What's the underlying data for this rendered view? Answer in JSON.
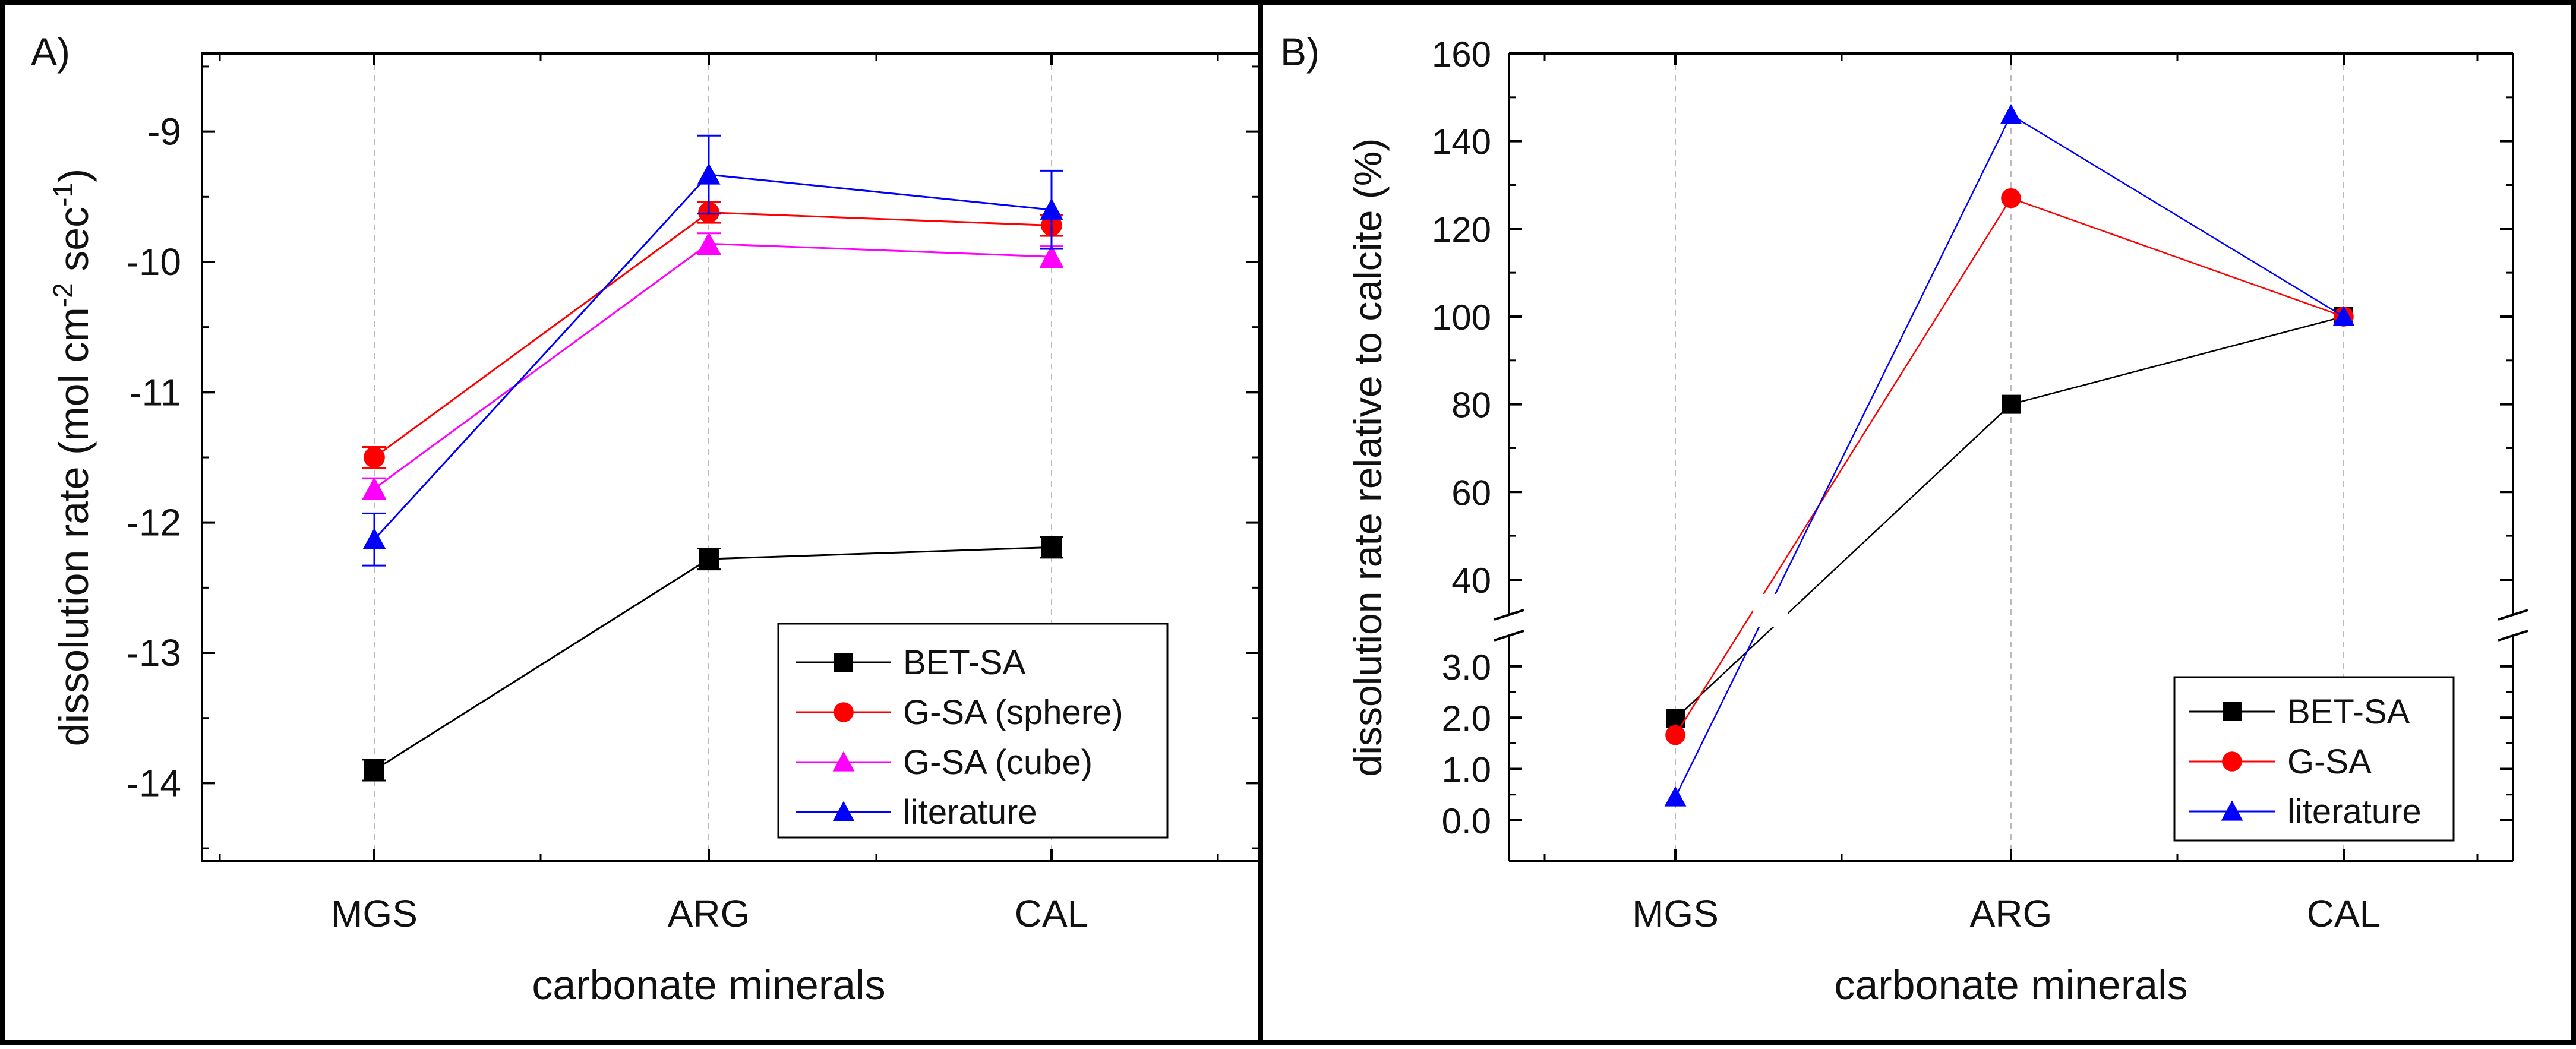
{
  "chart_data": [
    {
      "panel_label": "A)",
      "type": "line",
      "categories": [
        "MGS",
        "ARG",
        "CAL"
      ],
      "xlabel": "carbonate minerals",
      "ylabel_main": "dissolution rate (mol cm",
      "ylabel_sup1": "-2",
      "ylabel_mid": " sec",
      "ylabel_sup2": "-1",
      "ylabel_end": ")",
      "ylim": [
        -14.6,
        -8.4
      ],
      "yticks": [
        -14,
        -13,
        -12,
        -11,
        -10,
        -9
      ],
      "ytick_labels": [
        "-14",
        "-13",
        "-12",
        "-11",
        "-10",
        "-9"
      ],
      "legend_position": "bottom-right",
      "series": [
        {
          "name": "BET-SA",
          "marker": "square",
          "color": "#000000",
          "values": [
            -13.9,
            -12.28,
            -12.19
          ],
          "err": [
            0.08,
            0.08,
            0.08
          ]
        },
        {
          "name": "G-SA (sphere)",
          "marker": "circle",
          "color": "#ff0000",
          "values": [
            -11.5,
            -9.62,
            -9.72
          ],
          "err": [
            0.08,
            0.08,
            0.08
          ]
        },
        {
          "name": "G-SA (cube)",
          "marker": "triangle",
          "color": "#ff00ff",
          "values": [
            -11.74,
            -9.86,
            -9.96
          ],
          "err": [
            0.08,
            0.08,
            0.08
          ]
        },
        {
          "name": "literature",
          "marker": "triangle",
          "color": "#0000ff",
          "values": [
            -12.13,
            -9.33,
            -9.6
          ],
          "err": [
            0.2,
            0.3,
            0.3
          ]
        }
      ]
    },
    {
      "panel_label": "B)",
      "type": "line",
      "categories": [
        "MGS",
        "ARG",
        "CAL"
      ],
      "xlabel": "carbonate minerals",
      "ylabel": "dissolution rate relative to calcite (%)",
      "axis_break": true,
      "ylim_lower": [
        -0.8,
        3.6
      ],
      "ylim_upper": [
        32,
        160
      ],
      "yticks_lower": [
        0.0,
        1.0,
        2.0,
        3.0
      ],
      "ytick_labels_lower": [
        "0.0",
        "1.0",
        "2.0",
        "3.0"
      ],
      "yticks_upper": [
        40,
        60,
        80,
        100,
        120,
        140,
        160
      ],
      "ytick_labels_upper": [
        "40",
        "60",
        "80",
        "100",
        "120",
        "140",
        "160"
      ],
      "legend_position": "bottom-right",
      "series": [
        {
          "name": "BET-SA",
          "marker": "square",
          "color": "#000000",
          "values": [
            1.98,
            80,
            100
          ]
        },
        {
          "name": "G-SA",
          "marker": "circle",
          "color": "#ff0000",
          "values": [
            1.66,
            127,
            100
          ]
        },
        {
          "name": "literature",
          "marker": "triangle",
          "color": "#0000ff",
          "values": [
            0.45,
            146,
            100
          ]
        }
      ]
    }
  ]
}
